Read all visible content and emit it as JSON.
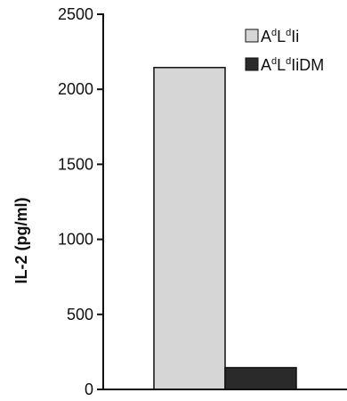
{
  "chart_data": {
    "type": "bar",
    "title": "",
    "xlabel": "",
    "ylabel": "IL-2 (pg/ml)",
    "ylim": [
      0,
      2500
    ],
    "yticks": [
      0,
      500,
      1000,
      1500,
      2000,
      2500
    ],
    "grid": false,
    "legend_position": "top-right",
    "categories": [
      ""
    ],
    "series": [
      {
        "name": "AdLdIi",
        "legend": {
          "p1": "A",
          "s1": "d",
          "p2": "L",
          "s2": "d",
          "p3": "Ii"
        },
        "values": [
          2145
        ],
        "color": "#d6d6d6"
      },
      {
        "name": "AdLdIiDM",
        "legend": {
          "p1": "A",
          "s1": "d",
          "p2": "L",
          "s2": "d",
          "p3": "IiDM"
        },
        "values": [
          145
        ],
        "color": "#2a2a2a"
      }
    ]
  }
}
